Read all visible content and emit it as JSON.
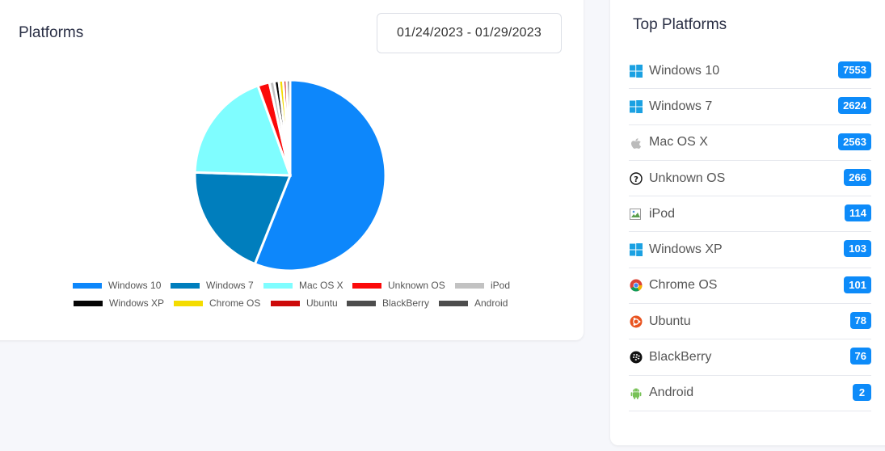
{
  "header": {
    "title": "Platforms",
    "date_range": "01/24/2023 - 01/29/2023"
  },
  "sidebar": {
    "title": "Top Platforms",
    "items": [
      {
        "name": "Windows 10",
        "count": "7553",
        "icon": "windows-icon"
      },
      {
        "name": "Windows 7",
        "count": "2624",
        "icon": "windows-icon"
      },
      {
        "name": "Mac OS X",
        "count": "2563",
        "icon": "apple-icon"
      },
      {
        "name": "Unknown OS",
        "count": "266",
        "icon": "question-icon"
      },
      {
        "name": "iPod",
        "count": "114",
        "icon": "broken-image-icon"
      },
      {
        "name": "Windows XP",
        "count": "103",
        "icon": "windows-icon"
      },
      {
        "name": "Chrome OS",
        "count": "101",
        "icon": "chrome-icon"
      },
      {
        "name": "Ubuntu",
        "count": "78",
        "icon": "ubuntu-icon"
      },
      {
        "name": "BlackBerry",
        "count": "76",
        "icon": "blackberry-icon"
      },
      {
        "name": "Android",
        "count": "2",
        "icon": "android-icon"
      }
    ]
  },
  "chart_data": {
    "type": "pie",
    "title": "",
    "legend_position": "bottom",
    "categories": [
      "Windows 10",
      "Windows 7",
      "Mac OS X",
      "Unknown OS",
      "iPod",
      "Windows XP",
      "Chrome OS",
      "Ubuntu",
      "BlackBerry",
      "Android"
    ],
    "values": [
      7553,
      2624,
      2563,
      266,
      114,
      103,
      101,
      78,
      76,
      2
    ],
    "colors": [
      "#0d87fb",
      "#007ebd",
      "#7ffdff",
      "#fb0a0a",
      "#c2c2c2",
      "#050505",
      "#f4dc00",
      "#cd0a0a",
      "#4d4d4d",
      "#4d4d4d"
    ]
  }
}
